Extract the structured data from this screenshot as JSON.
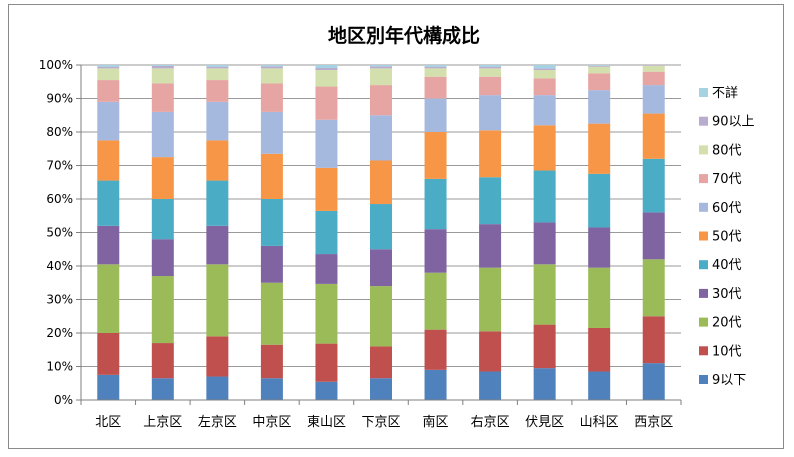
{
  "chart_data": {
    "type": "bar",
    "stacked": true,
    "normalized": true,
    "title": "地区別年代構成比",
    "xlabel": "",
    "ylabel": "",
    "ylim": [
      0,
      100
    ],
    "yticks": [
      "0%",
      "10%",
      "20%",
      "30%",
      "40%",
      "50%",
      "60%",
      "70%",
      "80%",
      "90%",
      "100%"
    ],
    "grid": true,
    "legend_position": "right",
    "categories": [
      "北区",
      "上京区",
      "左京区",
      "中京区",
      "東山区",
      "下京区",
      "南区",
      "右京区",
      "伏見区",
      "山科区",
      "西京区"
    ],
    "series": [
      {
        "name": "9以下",
        "color": "#4F81BD",
        "values": [
          7.5,
          6.5,
          7.0,
          6.5,
          5.5,
          6.5,
          9.0,
          8.5,
          9.5,
          8.5,
          11.0
        ]
      },
      {
        "name": "10代",
        "color": "#C0504D",
        "values": [
          12.5,
          10.5,
          12.0,
          10.0,
          11.5,
          9.5,
          12.0,
          12.0,
          13.0,
          13.0,
          14.0
        ]
      },
      {
        "name": "20代",
        "color": "#9BBB59",
        "values": [
          20.5,
          20.0,
          21.5,
          18.5,
          18.0,
          18.0,
          17.0,
          19.0,
          18.0,
          18.0,
          17.0
        ]
      },
      {
        "name": "30代",
        "color": "#8064A2",
        "values": [
          11.5,
          11.0,
          11.5,
          11.0,
          9.0,
          11.0,
          13.0,
          13.0,
          12.5,
          12.0,
          14.0
        ]
      },
      {
        "name": "40代",
        "color": "#4BACC6",
        "values": [
          13.5,
          12.0,
          13.5,
          14.0,
          13.0,
          13.5,
          15.0,
          14.0,
          15.5,
          16.0,
          16.0
        ]
      },
      {
        "name": "50代",
        "color": "#F79646",
        "values": [
          12.0,
          12.5,
          12.0,
          13.5,
          13.0,
          13.0,
          14.0,
          14.0,
          13.5,
          15.0,
          13.5
        ]
      },
      {
        "name": "60代",
        "color": "#A5B8DE",
        "values": [
          11.5,
          13.5,
          11.5,
          12.5,
          14.5,
          13.5,
          10.0,
          10.5,
          9.0,
          10.0,
          8.5
        ]
      },
      {
        "name": "70代",
        "color": "#E6A4A2",
        "values": [
          6.5,
          8.5,
          6.5,
          8.5,
          10.0,
          9.0,
          6.5,
          5.5,
          5.0,
          5.0,
          4.0
        ]
      },
      {
        "name": "80代",
        "color": "#D3DFAD",
        "values": [
          3.5,
          4.5,
          3.5,
          4.5,
          5.0,
          5.0,
          2.5,
          2.5,
          2.5,
          2.0,
          1.8
        ]
      },
      {
        "name": "90以上",
        "color": "#B9ADCF",
        "values": [
          0.5,
          0.7,
          0.5,
          0.6,
          0.6,
          0.6,
          0.5,
          0.5,
          0.5,
          0.3,
          0.2
        ]
      },
      {
        "name": "不詳",
        "color": "#A5D3E3",
        "values": [
          0.5,
          0.3,
          0.5,
          0.4,
          0.9,
          0.4,
          0.5,
          0.5,
          1.0,
          0.2,
          0.0
        ]
      }
    ]
  }
}
